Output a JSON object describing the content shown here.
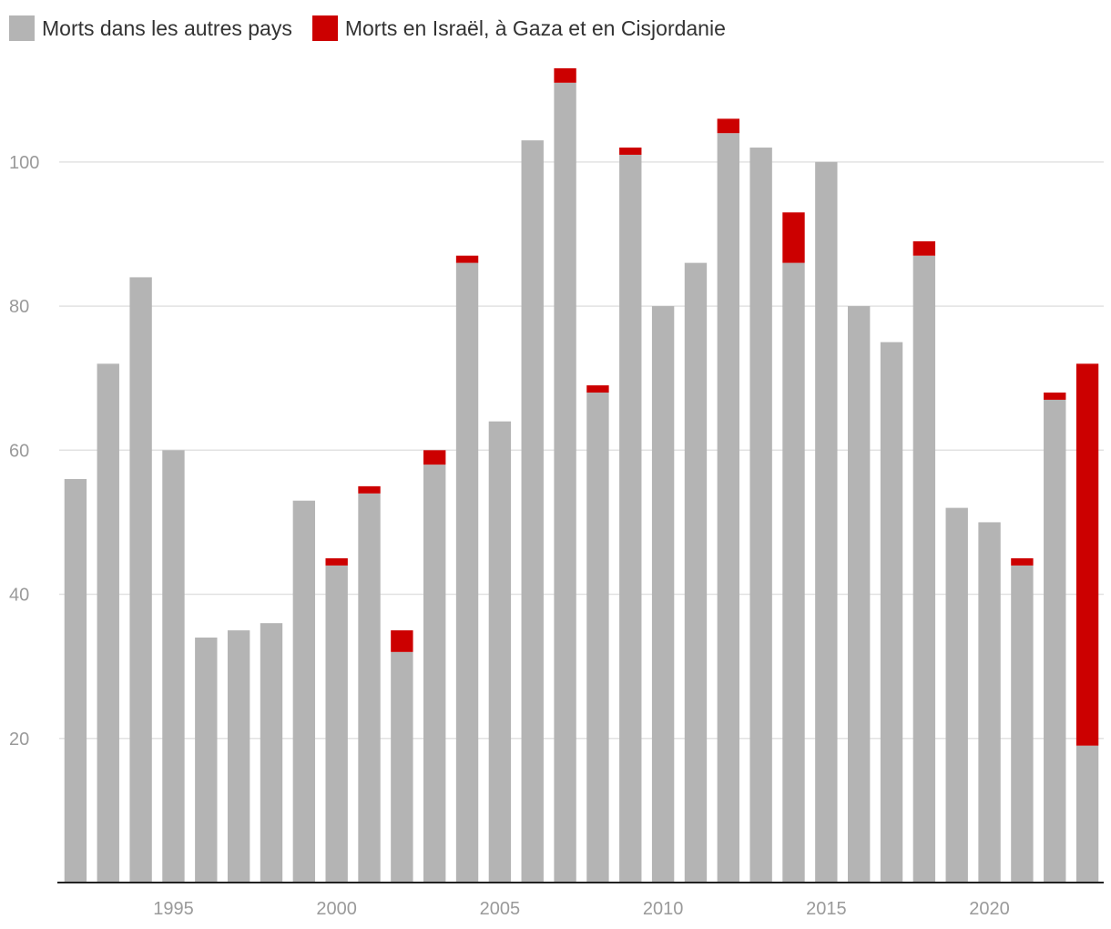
{
  "chart_data": {
    "type": "bar",
    "stacked": true,
    "title": "",
    "xlabel": "",
    "ylabel": "",
    "ylim": [
      0,
      113
    ],
    "grid": true,
    "legend_position": "top-left",
    "y_ticks": [
      20,
      40,
      60,
      80,
      100
    ],
    "x_ticks": [
      1995,
      2000,
      2005,
      2010,
      2015,
      2020
    ],
    "categories": [
      1992,
      1993,
      1994,
      1995,
      1996,
      1997,
      1998,
      1999,
      2000,
      2001,
      2002,
      2003,
      2004,
      2005,
      2006,
      2007,
      2008,
      2009,
      2010,
      2011,
      2012,
      2013,
      2014,
      2015,
      2016,
      2017,
      2018,
      2019,
      2020,
      2021,
      2022,
      2023
    ],
    "series": [
      {
        "name": "Morts dans les autres pays",
        "color": "#b4b4b4",
        "values": [
          56,
          72,
          84,
          60,
          34,
          35,
          36,
          53,
          44,
          54,
          32,
          58,
          86,
          64,
          103,
          111,
          68,
          101,
          80,
          86,
          104,
          102,
          86,
          100,
          80,
          75,
          87,
          52,
          50,
          44,
          67,
          19
        ]
      },
      {
        "name": "Morts en Israël, à Gaza et en Cisjordanie",
        "color": "#cc0000",
        "values": [
          0,
          0,
          0,
          0,
          0,
          0,
          0,
          0,
          1,
          1,
          3,
          2,
          1,
          0,
          0,
          2,
          1,
          1,
          0,
          0,
          2,
          0,
          7,
          0,
          0,
          0,
          2,
          0,
          0,
          1,
          1,
          53
        ]
      }
    ]
  }
}
